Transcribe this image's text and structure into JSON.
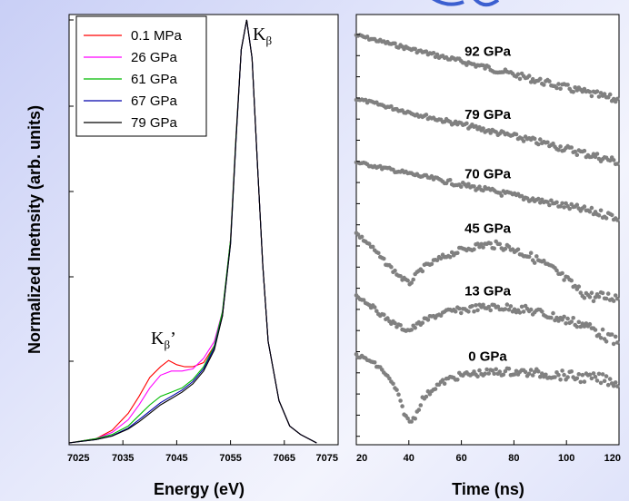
{
  "chart_data": [
    {
      "type": "line",
      "xlabel": "Energy (eV)",
      "ylabel": "Normalized Inetnsity (arb. units)",
      "xlim": [
        7025,
        7075
      ],
      "ylim": [
        0,
        1.0
      ],
      "x_ticks": [
        "7025",
        "7035",
        "7045",
        "7055",
        "7065",
        "7075"
      ],
      "legend_position": "top-left",
      "annotations": {
        "kbeta": "K",
        "kbeta_sub": "β",
        "kbeta_prime": "K",
        "kbeta_prime_sub": "β",
        "kbeta_prime_mark": "’"
      },
      "series": [
        {
          "name": "0.1 MPa",
          "color": "#ff0000",
          "x": [
            7025,
            7030,
            7033,
            7036,
            7038,
            7040,
            7042,
            7043.5,
            7045,
            7046.5,
            7048,
            7050,
            7052,
            7053.5,
            7055,
            7056,
            7057,
            7058,
            7059,
            7060,
            7061,
            7062,
            7064,
            7066,
            7068,
            7071
          ],
          "y": [
            0.0,
            0.01,
            0.03,
            0.07,
            0.11,
            0.155,
            0.18,
            0.195,
            0.185,
            0.18,
            0.18,
            0.19,
            0.23,
            0.3,
            0.48,
            0.72,
            0.93,
            1.0,
            0.91,
            0.66,
            0.42,
            0.24,
            0.1,
            0.04,
            0.02,
            0.0
          ]
        },
        {
          "name": "26 GPa",
          "color": "#ff00ff",
          "x": [
            7025,
            7030,
            7033,
            7036,
            7038,
            7040,
            7042,
            7044,
            7046,
            7048,
            7050,
            7052,
            7053.5,
            7055,
            7056,
            7057,
            7058,
            7059,
            7060,
            7061,
            7062,
            7064,
            7066,
            7068,
            7071
          ],
          "y": [
            0.0,
            0.01,
            0.025,
            0.055,
            0.09,
            0.13,
            0.16,
            0.17,
            0.17,
            0.175,
            0.2,
            0.24,
            0.31,
            0.48,
            0.72,
            0.93,
            1.0,
            0.91,
            0.66,
            0.42,
            0.24,
            0.1,
            0.04,
            0.02,
            0.0
          ]
        },
        {
          "name": "61 GPa",
          "color": "#00bb00",
          "x": [
            7025,
            7030,
            7033,
            7036,
            7038,
            7040,
            7042,
            7044,
            7046,
            7048,
            7050,
            7052,
            7053.5,
            7055,
            7056,
            7057,
            7058,
            7059,
            7060,
            7061,
            7062,
            7064,
            7066,
            7068,
            7071
          ],
          "y": [
            0.0,
            0.01,
            0.02,
            0.04,
            0.065,
            0.09,
            0.11,
            0.12,
            0.13,
            0.15,
            0.18,
            0.23,
            0.31,
            0.48,
            0.72,
            0.93,
            1.0,
            0.91,
            0.66,
            0.42,
            0.24,
            0.1,
            0.04,
            0.02,
            0.0
          ]
        },
        {
          "name": "67 GPa",
          "color": "#0000aa",
          "x": [
            7025,
            7030,
            7033,
            7036,
            7038,
            7040,
            7042,
            7044,
            7046,
            7048,
            7050,
            7052,
            7053.5,
            7055,
            7056,
            7057,
            7058,
            7059,
            7060,
            7061,
            7062,
            7064,
            7066,
            7068,
            7071
          ],
          "y": [
            0.0,
            0.008,
            0.017,
            0.035,
            0.055,
            0.075,
            0.095,
            0.11,
            0.125,
            0.145,
            0.175,
            0.225,
            0.3,
            0.47,
            0.71,
            0.93,
            1.0,
            0.91,
            0.66,
            0.42,
            0.24,
            0.1,
            0.04,
            0.02,
            0.0
          ]
        },
        {
          "name": "79 GPa",
          "color": "#000000",
          "x": [
            7025,
            7030,
            7033,
            7036,
            7038,
            7040,
            7042,
            7044,
            7046,
            7048,
            7050,
            7052,
            7053.5,
            7055,
            7056,
            7057,
            7058,
            7059,
            7060,
            7061,
            7062,
            7064,
            7066,
            7068,
            7071
          ],
          "y": [
            0.0,
            0.008,
            0.016,
            0.033,
            0.05,
            0.07,
            0.09,
            0.105,
            0.12,
            0.14,
            0.17,
            0.22,
            0.3,
            0.47,
            0.71,
            0.93,
            1.0,
            0.91,
            0.66,
            0.42,
            0.24,
            0.1,
            0.04,
            0.02,
            0.0
          ]
        }
      ]
    },
    {
      "type": "scatter",
      "xlabel": "Time (ns)",
      "xlim": [
        20,
        120
      ],
      "ylim": [
        0,
        460
      ],
      "x_ticks": [
        "20",
        "40",
        "60",
        "80",
        "100",
        "120"
      ],
      "marker_color": "#808080",
      "series": [
        {
          "name": "92 GPa",
          "x": [
            20,
            45,
            70,
            95,
            120
          ],
          "y": [
            438,
            420,
            403,
            385,
            368
          ]
        },
        {
          "name": "79 GPa",
          "x": [
            20,
            45,
            70,
            95,
            120
          ],
          "y": [
            370,
            352,
            336,
            320,
            302
          ]
        },
        {
          "name": "70 GPa",
          "x": [
            20,
            45,
            70,
            95,
            120
          ],
          "y": [
            302,
            287,
            272,
            258,
            243
          ]
        },
        {
          "name": "45 GPa",
          "x": [
            20,
            25,
            30,
            35,
            40,
            45,
            50,
            55,
            60,
            65,
            70,
            75,
            80,
            85,
            90,
            95,
            100,
            105,
            110,
            120
          ],
          "y": [
            226,
            214,
            198,
            184,
            172,
            188,
            196,
            203,
            208,
            212,
            214,
            213,
            209,
            203,
            196,
            187,
            176,
            164,
            158,
            158
          ]
        },
        {
          "name": "13 GPa",
          "x": [
            20,
            25,
            30,
            35,
            40,
            45,
            50,
            55,
            60,
            65,
            70,
            75,
            80,
            85,
            90,
            95,
            100,
            105,
            110,
            115,
            120
          ],
          "y": [
            160,
            150,
            138,
            128,
            122,
            131,
            138,
            142,
            144,
            146,
            147,
            147,
            146,
            144,
            141,
            137,
            133,
            130,
            124,
            116,
            108
          ]
        },
        {
          "name": "0 GPa",
          "x": [
            20,
            25,
            30,
            35,
            38,
            40,
            42,
            45,
            50,
            55,
            60,
            65,
            70,
            75,
            80,
            85,
            90,
            95,
            100,
            105,
            110,
            115,
            120
          ],
          "y": [
            96,
            90,
            80,
            60,
            36,
            24,
            28,
            48,
            62,
            70,
            74,
            76,
            77,
            78,
            78,
            77,
            76,
            75,
            74,
            72,
            71,
            70,
            66
          ]
        }
      ]
    }
  ]
}
